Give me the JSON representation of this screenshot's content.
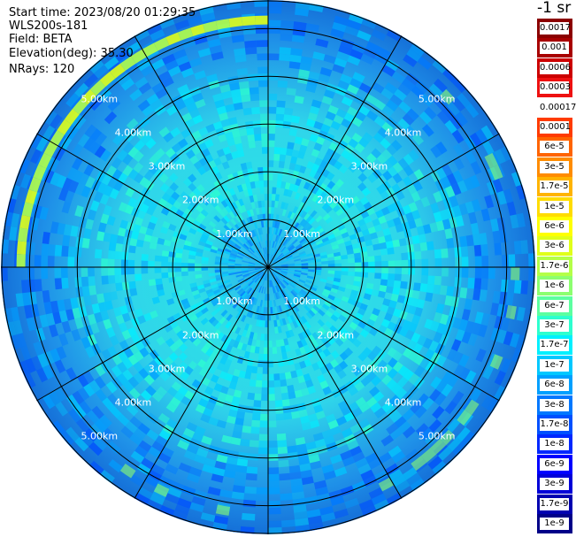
{
  "header": {
    "start_time": "Start time: 2023/08/20 01:29:35",
    "instrument": "WLS200s-181",
    "field": "Field: BETA",
    "elevation": "Elevation(deg): 35.30",
    "nrays": "NRays: 120"
  },
  "colorbar": {
    "units": "-1 sr",
    "entries": [
      {
        "label": "0.0017",
        "color": "#8b0000"
      },
      {
        "label": "0.001",
        "color": "#a80000"
      },
      {
        "label": "0.0006",
        "color": "#cc0000"
      },
      {
        "label": "0.0003",
        "color": "#ee1111"
      },
      {
        "label": "0.00017",
        "color": "#ffffff"
      },
      {
        "label": "0.0001",
        "color": "#ff3b00"
      },
      {
        "label": "6e-5",
        "color": "#ff6400"
      },
      {
        "label": "3e-5",
        "color": "#ff8c00"
      },
      {
        "label": "1.7e-5",
        "color": "#ffb400"
      },
      {
        "label": "1e-5",
        "color": "#ffdc00"
      },
      {
        "label": "6e-6",
        "color": "#ffff00"
      },
      {
        "label": "3e-6",
        "color": "#e0ff1a"
      },
      {
        "label": "1.7e-6",
        "color": "#b4ff48"
      },
      {
        "label": "1e-6",
        "color": "#8cff70"
      },
      {
        "label": "6e-7",
        "color": "#5cffa0"
      },
      {
        "label": "3e-7",
        "color": "#2dffcf"
      },
      {
        "label": "1.7e-7",
        "color": "#00f0ff"
      },
      {
        "label": "1e-7",
        "color": "#00c8ff"
      },
      {
        "label": "6e-8",
        "color": "#00a0ff"
      },
      {
        "label": "3e-8",
        "color": "#0078ff"
      },
      {
        "label": "1.7e-8",
        "color": "#0050ff"
      },
      {
        "label": "1e-8",
        "color": "#0028ff"
      },
      {
        "label": "6e-9",
        "color": "#0000ff"
      },
      {
        "label": "3e-9",
        "color": "#0000d8"
      },
      {
        "label": "1.7e-9",
        "color": "#0000b0"
      },
      {
        "label": "1e-9",
        "color": "#000088"
      }
    ]
  },
  "chart_data": {
    "type": "heatmap",
    "projection": "polar (PPI scan)",
    "field": "BETA",
    "units": "-1 sr",
    "range_rings_km": [
      1,
      2,
      3,
      4,
      5
    ],
    "range_ring_labels": [
      "1.00km",
      "2.00km",
      "3.00km",
      "4.00km",
      "5.00km"
    ],
    "spoke_angles_deg": [
      0,
      30,
      60,
      90,
      120,
      150,
      180,
      210,
      240,
      270,
      300,
      330
    ],
    "max_range_km": 5.6,
    "color_scale": "log",
    "value_range": [
      1e-09,
      0.0017
    ],
    "typical_values": {
      "background": "1e-8 to 3e-7",
      "aerosol_ring_km": 5.2,
      "aerosol_ring_values": "1e-6 to 6e-6",
      "aerosol_ring_azimuth_deg": [
        270,
        360
      ]
    }
  }
}
